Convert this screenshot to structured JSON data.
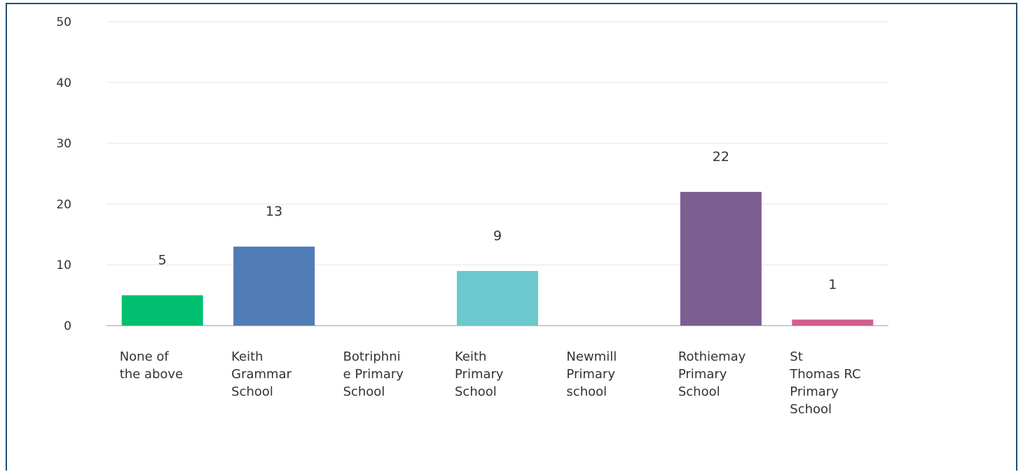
{
  "chart_data": {
    "type": "bar",
    "categories": [
      [
        "None of",
        "the above"
      ],
      [
        "Keith",
        "Grammar",
        "School"
      ],
      [
        "Botriphni",
        "e Primary",
        "School"
      ],
      [
        "Keith",
        "Primary",
        "School"
      ],
      [
        "Newmill",
        "Primary",
        "school"
      ],
      [
        "Rothiemay",
        "Primary",
        "School"
      ],
      [
        "St",
        "Thomas RC",
        "Primary",
        "School"
      ]
    ],
    "values": [
      5,
      13,
      0,
      9,
      0,
      22,
      1
    ],
    "value_labels": [
      "5",
      "13",
      "",
      "9",
      "",
      "22",
      "1"
    ],
    "colors": [
      "#00bf6f",
      "#507cb6",
      "#f9be00",
      "#6bc8cd",
      "#ff8b4f",
      "#7d5e90",
      "#d25f90"
    ],
    "ylim": [
      0,
      50
    ],
    "yticks": [
      0,
      10,
      20,
      30,
      40,
      50
    ],
    "grid": true,
    "title": "",
    "xlabel": "",
    "ylabel": ""
  }
}
